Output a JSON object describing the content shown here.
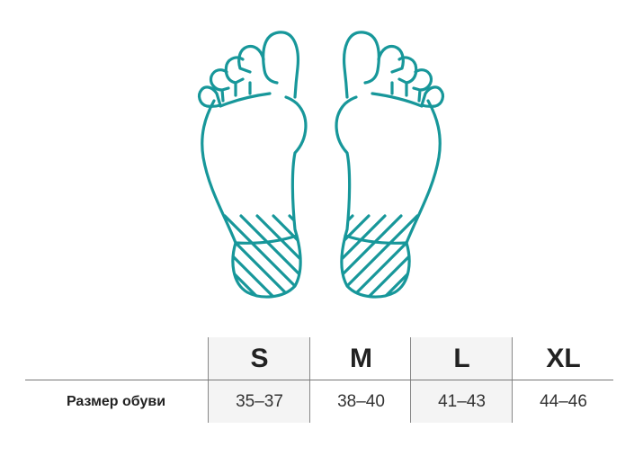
{
  "illustration": {
    "name": "feet-soles",
    "accent_color": "#17979a"
  },
  "table": {
    "row_label": "Размер обуви",
    "columns": [
      {
        "size": "S",
        "range": "35–37",
        "shaded": true
      },
      {
        "size": "M",
        "range": "38–40",
        "shaded": false
      },
      {
        "size": "L",
        "range": "41–43",
        "shaded": true
      },
      {
        "size": "XL",
        "range": "44–46",
        "shaded": false
      }
    ]
  }
}
